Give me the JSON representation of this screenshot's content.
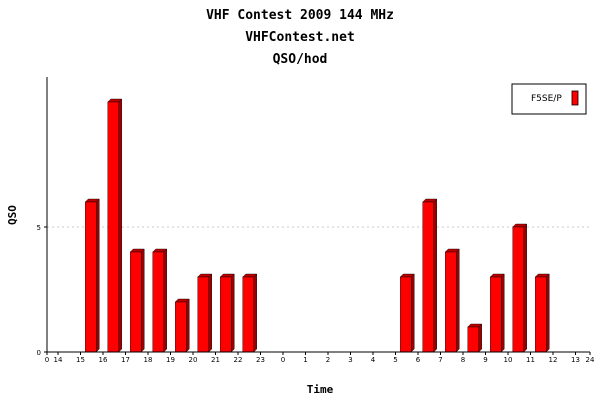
{
  "chart_data": {
    "type": "bar",
    "title": "VHF Contest 2009 144 MHz",
    "subtitle": "VHFContest.net",
    "subtitle2": "QSO/hod",
    "xlabel": "Time",
    "ylabel": "QSO",
    "ylim": [
      0,
      11
    ],
    "y_ticks": [
      0,
      5
    ],
    "grid": "dashed horizontal at 5",
    "x_ticks": [
      "0",
      "14",
      "15",
      "16",
      "17",
      "18",
      "19",
      "20",
      "21",
      "22",
      "23",
      "0",
      "1",
      "2",
      "3",
      "4",
      "5",
      "6",
      "7",
      "8",
      "9",
      "10",
      "11",
      "12",
      "13",
      "24"
    ],
    "categories": [
      "14",
      "15",
      "16",
      "17",
      "18",
      "19",
      "20",
      "21",
      "22",
      "23",
      "0",
      "1",
      "2",
      "3",
      "4",
      "5",
      "6",
      "7",
      "8",
      "9",
      "10",
      "11",
      "12",
      "13"
    ],
    "series": [
      {
        "name": "F5SE/P",
        "color": "#ff0000",
        "values": [
          0,
          6,
          10,
          4,
          4,
          2,
          3,
          3,
          3,
          0,
          0,
          0,
          0,
          0,
          0,
          3,
          6,
          4,
          1,
          3,
          5,
          3,
          0,
          0
        ]
      }
    ],
    "legend_position": "top-right"
  }
}
